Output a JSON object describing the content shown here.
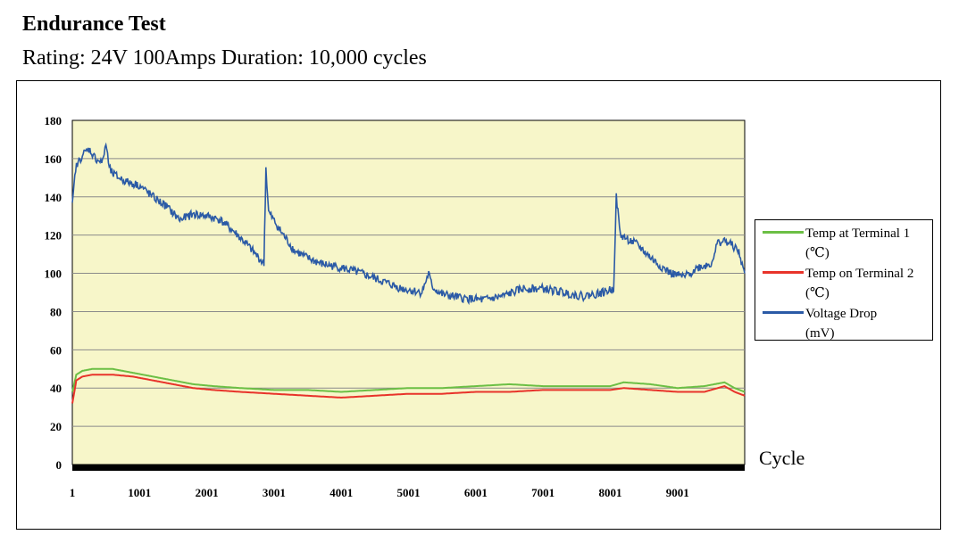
{
  "title": "Endurance Test",
  "subtitle": "Rating: 24V 100Amps Duration: 10,000 cycles",
  "colors": {
    "plot_bg": "#f7f6c9",
    "green": "#6cbf45",
    "red": "#e8332a",
    "blue": "#2b5aa6",
    "grid": "#8a8a8a"
  },
  "chart_data": {
    "type": "line",
    "title": "Endurance Test",
    "subtitle": "Rating: 24V 100Amps Duration: 10,000 cycles",
    "xlabel": "Cycle",
    "ylabel": "",
    "xlim": [
      1,
      10000
    ],
    "ylim": [
      0,
      180
    ],
    "yticks": [
      "0",
      "20",
      "40",
      "60",
      "80",
      "100",
      "120",
      "140",
      "160",
      "180"
    ],
    "xticks": [
      "1",
      "1001",
      "2001",
      "3001",
      "4001",
      "5001",
      "6001",
      "7001",
      "8001",
      "9001"
    ],
    "xtick_values": [
      1,
      1001,
      2001,
      3001,
      4001,
      5001,
      6001,
      7001,
      8001,
      9001
    ],
    "grid": "horizontal",
    "legend_position": "right",
    "series": [
      {
        "name": "Temp at Terminal 1 (℃)",
        "name_lines": [
          "Temp at Terminal 1",
          "(℃)"
        ],
        "color": "#6cbf45",
        "x": [
          1,
          60,
          150,
          300,
          600,
          900,
          1200,
          1500,
          1800,
          2100,
          2500,
          3000,
          3500,
          4000,
          4500,
          5000,
          5500,
          6000,
          6500,
          7000,
          7500,
          8000,
          8200,
          8600,
          9000,
          9400,
          9700,
          9850,
          10000
        ],
        "values": [
          38,
          47,
          49,
          50,
          50,
          48,
          46,
          44,
          42,
          41,
          40,
          39,
          39,
          38,
          39,
          40,
          40,
          41,
          42,
          41,
          41,
          41,
          43,
          42,
          40,
          41,
          43,
          40,
          38
        ]
      },
      {
        "name": "Temp on Terminal 2 (℃)",
        "name_lines": [
          "Temp on Terminal 2",
          "(℃)"
        ],
        "color": "#e8332a",
        "x": [
          1,
          60,
          150,
          300,
          600,
          900,
          1200,
          1500,
          1800,
          2100,
          2500,
          3000,
          3500,
          4000,
          4500,
          5000,
          5500,
          6000,
          6500,
          7000,
          7500,
          8000,
          8200,
          8600,
          9000,
          9400,
          9700,
          9850,
          10000
        ],
        "values": [
          32,
          44,
          46,
          47,
          47,
          46,
          44,
          42,
          40,
          39,
          38,
          37,
          36,
          35,
          36,
          37,
          37,
          38,
          38,
          39,
          39,
          39,
          40,
          39,
          38,
          38,
          41,
          38,
          36
        ]
      },
      {
        "name": "Voltage Drop (mV)",
        "name_lines": [
          "Voltage Drop",
          "(mV)"
        ],
        "color": "#2b5aa6",
        "x": [
          1,
          50,
          150,
          250,
          350,
          450,
          500,
          550,
          600,
          800,
          1000,
          1200,
          1400,
          1600,
          1800,
          2000,
          2200,
          2400,
          2600,
          2850,
          2880,
          2920,
          3100,
          3300,
          3500,
          3700,
          4000,
          4300,
          4600,
          4900,
          5200,
          5300,
          5350,
          5500,
          5800,
          6100,
          6400,
          6700,
          7000,
          7300,
          7600,
          7900,
          8050,
          8090,
          8150,
          8400,
          8700,
          8900,
          9100,
          9300,
          9500,
          9600,
          9700,
          9800,
          9900,
          10000
        ],
        "values": [
          135,
          155,
          162,
          165,
          160,
          158,
          168,
          155,
          152,
          148,
          146,
          140,
          135,
          128,
          131,
          130,
          128,
          122,
          115,
          105,
          155,
          132,
          122,
          112,
          108,
          105,
          103,
          100,
          96,
          92,
          90,
          100,
          93,
          89,
          87,
          86,
          88,
          92,
          92,
          90,
          88,
          90,
          92,
          140,
          120,
          115,
          105,
          100,
          98,
          103,
          105,
          116,
          117,
          115,
          112,
          100
        ]
      }
    ]
  }
}
